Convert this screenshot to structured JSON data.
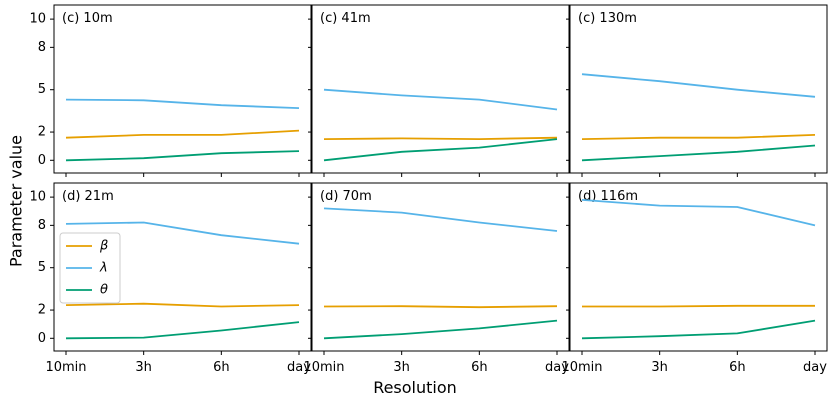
{
  "figure": {
    "ylabel": "Parameter value",
    "xlabel": "Resolution"
  },
  "chart_data": [
    {
      "type": "line",
      "title": "(c) 10m",
      "categories": [
        "10min",
        "3h",
        "6h",
        "day"
      ],
      "yticks": [
        0,
        2,
        5,
        8,
        10
      ],
      "ylim": [
        -0.9,
        11
      ],
      "series": [
        {
          "name": "β",
          "color": "#E69F00",
          "values": [
            1.6,
            1.8,
            1.8,
            2.1
          ]
        },
        {
          "name": "λ",
          "color": "#56B4E9",
          "values": [
            4.3,
            4.25,
            3.9,
            3.7
          ]
        },
        {
          "name": "θ",
          "color": "#009E73",
          "values": [
            0.0,
            0.15,
            0.5,
            0.65
          ]
        }
      ]
    },
    {
      "type": "line",
      "title": "(c) 41m",
      "categories": [
        "10min",
        "3h",
        "6h",
        "day"
      ],
      "yticks": [
        0,
        2,
        5,
        8,
        10
      ],
      "ylim": [
        -0.9,
        11
      ],
      "series": [
        {
          "name": "β",
          "color": "#E69F00",
          "values": [
            1.5,
            1.55,
            1.5,
            1.6
          ]
        },
        {
          "name": "λ",
          "color": "#56B4E9",
          "values": [
            5.0,
            4.6,
            4.3,
            3.6
          ]
        },
        {
          "name": "θ",
          "color": "#009E73",
          "values": [
            0.0,
            0.6,
            0.9,
            1.5
          ]
        }
      ]
    },
    {
      "type": "line",
      "title": "(c) 130m",
      "categories": [
        "10min",
        "3h",
        "6h",
        "day"
      ],
      "yticks": [
        0,
        2,
        5,
        8,
        10
      ],
      "ylim": [
        -0.9,
        11
      ],
      "series": [
        {
          "name": "β",
          "color": "#E69F00",
          "values": [
            1.5,
            1.6,
            1.6,
            1.8
          ]
        },
        {
          "name": "λ",
          "color": "#56B4E9",
          "values": [
            6.1,
            5.6,
            5.0,
            4.5
          ]
        },
        {
          "name": "θ",
          "color": "#009E73",
          "values": [
            0.0,
            0.3,
            0.6,
            1.05
          ]
        }
      ]
    },
    {
      "type": "line",
      "title": "(d) 21m",
      "categories": [
        "10min",
        "3h",
        "6h",
        "day"
      ],
      "yticks": [
        0,
        2,
        5,
        8,
        10
      ],
      "ylim": [
        -0.9,
        11
      ],
      "series": [
        {
          "name": "β",
          "color": "#E69F00",
          "values": [
            2.35,
            2.45,
            2.25,
            2.35
          ]
        },
        {
          "name": "λ",
          "color": "#56B4E9",
          "values": [
            8.1,
            8.2,
            7.3,
            6.7
          ]
        },
        {
          "name": "θ",
          "color": "#009E73",
          "values": [
            0.0,
            0.05,
            0.55,
            1.15
          ]
        }
      ]
    },
    {
      "type": "line",
      "title": "(d) 70m",
      "categories": [
        "10min",
        "3h",
        "6h",
        "day"
      ],
      "yticks": [
        0,
        2,
        5,
        8,
        10
      ],
      "ylim": [
        -0.9,
        11
      ],
      "series": [
        {
          "name": "β",
          "color": "#E69F00",
          "values": [
            2.25,
            2.27,
            2.2,
            2.27
          ]
        },
        {
          "name": "λ",
          "color": "#56B4E9",
          "values": [
            9.2,
            8.9,
            8.2,
            7.6
          ]
        },
        {
          "name": "θ",
          "color": "#009E73",
          "values": [
            0.0,
            0.3,
            0.7,
            1.25
          ]
        }
      ]
    },
    {
      "type": "line",
      "title": "(d) 116m",
      "categories": [
        "10min",
        "3h",
        "6h",
        "day"
      ],
      "yticks": [
        0,
        2,
        5,
        8,
        10
      ],
      "ylim": [
        -0.9,
        11
      ],
      "series": [
        {
          "name": "β",
          "color": "#E69F00",
          "values": [
            2.25,
            2.25,
            2.3,
            2.3
          ]
        },
        {
          "name": "λ",
          "color": "#56B4E9",
          "values": [
            9.8,
            9.4,
            9.3,
            8.0
          ]
        },
        {
          "name": "θ",
          "color": "#009E73",
          "values": [
            0.0,
            0.15,
            0.35,
            1.25
          ]
        }
      ]
    }
  ],
  "legend": {
    "panel": 3,
    "placement": "center-left",
    "entries": [
      {
        "label": "β",
        "color": "#E69F00"
      },
      {
        "label": "λ",
        "color": "#56B4E9"
      },
      {
        "label": "θ",
        "color": "#009E73"
      }
    ]
  }
}
